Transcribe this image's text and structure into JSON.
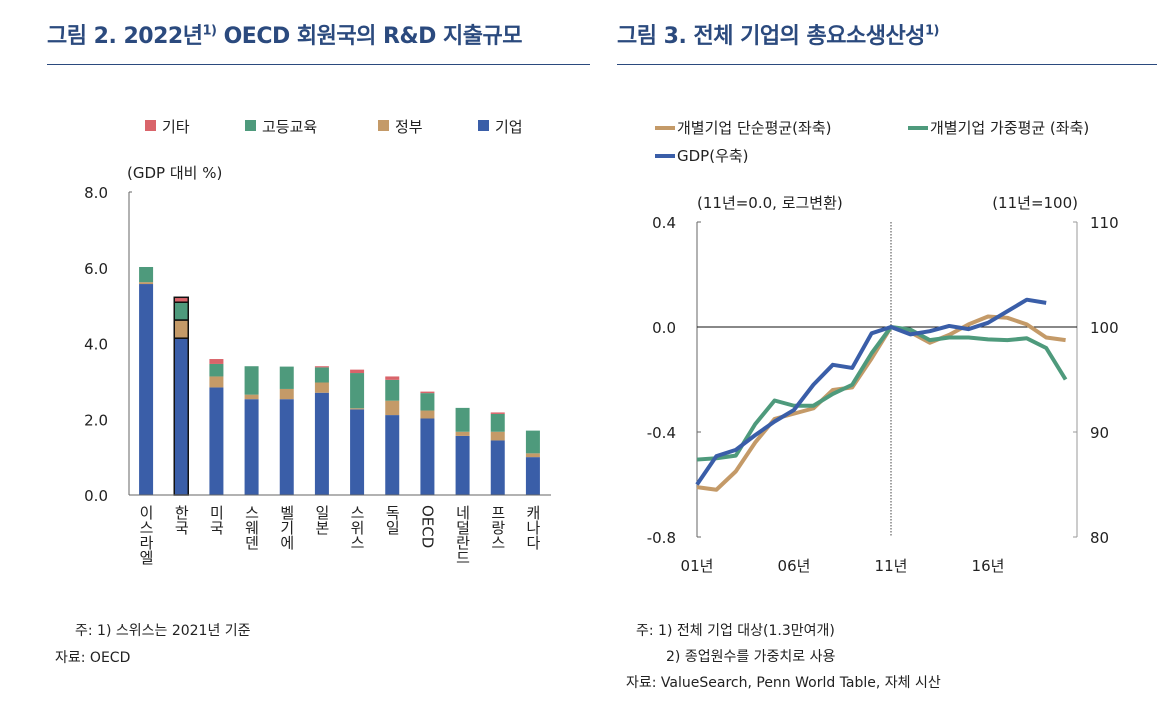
{
  "left": {
    "title": "그림 2. 2022년",
    "title_sup": "1)",
    "title_rest": " OECD 회원국의 R&D 지출규모",
    "notes": [
      "주: 1) 스위스는 2021년 기준",
      "자료: OECD"
    ]
  },
  "right": {
    "title": "그림 3. 전체 기업의 총요소생산성",
    "title_sup": "1)",
    "notes": [
      "주: 1) 전체 기업 대상(1.3만여개)",
      "2) 종업원수를 가중치로 사용",
      "자료: ValueSearch, Penn World Table, 자체 시산"
    ]
  },
  "chart_data": [
    {
      "type": "bar",
      "stacked": true,
      "ylabel": "(GDP 대비 %)",
      "ylim": [
        0,
        8
      ],
      "yticks": [
        "0.0",
        "2.0",
        "4.0",
        "6.0",
        "8.0"
      ],
      "legend_placement": "top",
      "categories": [
        "이스라엘",
        "한국",
        "미국",
        "스웨덴",
        "벨기에",
        "일본",
        "스위스",
        "독일",
        "OECD",
        "네덜란드",
        "프랑스",
        "캐나다"
      ],
      "highlight_category": "한국",
      "series": [
        {
          "name": "기업",
          "color": "#3a5ea8",
          "values": [
            5.57,
            4.14,
            2.84,
            2.53,
            2.53,
            2.7,
            2.26,
            2.11,
            2.02,
            1.56,
            1.44,
            1.0
          ]
        },
        {
          "name": "정부",
          "color": "#c49a68",
          "values": [
            0.05,
            0.48,
            0.29,
            0.12,
            0.27,
            0.27,
            0.03,
            0.38,
            0.21,
            0.11,
            0.23,
            0.1
          ]
        },
        {
          "name": "고등교육",
          "color": "#4e9a7c",
          "values": [
            0.4,
            0.47,
            0.33,
            0.75,
            0.59,
            0.4,
            0.93,
            0.55,
            0.46,
            0.63,
            0.47,
            0.6
          ]
        },
        {
          "name": "기타",
          "color": "#d9646a",
          "values": [
            0.0,
            0.13,
            0.13,
            0.0,
            0.0,
            0.03,
            0.09,
            0.09,
            0.04,
            0.0,
            0.04,
            0.0
          ]
        }
      ],
      "legend_order": [
        "기타",
        "고등교육",
        "정부",
        "기업"
      ]
    },
    {
      "type": "line",
      "ylabel_left": "(11년=0.0, 로그변환)",
      "ylabel_right": "(11년=100)",
      "ylim_left": [
        -0.8,
        0.4
      ],
      "ylim_right": [
        80,
        110
      ],
      "yticks_left": [
        "0.4",
        "0.0",
        "-0.4",
        "-0.8"
      ],
      "yticks_right": [
        "110",
        "100",
        "90",
        "80"
      ],
      "xticks": [
        "01년",
        "06년",
        "11년",
        "16년"
      ],
      "xtick_years": [
        2001,
        2006,
        2011,
        2016
      ],
      "xlim": [
        2001,
        2020.5
      ],
      "reference_line_year": 2011,
      "legend_placement": "top",
      "x": [
        2001,
        2002,
        2003,
        2004,
        2005,
        2006,
        2007,
        2008,
        2009,
        2010,
        2011,
        2012,
        2013,
        2014,
        2015,
        2016,
        2017,
        2018,
        2019,
        2020
      ],
      "series": [
        {
          "name": "개별기업 단순평균(좌축)",
          "axis": "left",
          "color": "#c49a68",
          "values": [
            -0.61,
            -0.62,
            -0.55,
            -0.44,
            -0.35,
            -0.33,
            -0.31,
            -0.24,
            -0.23,
            -0.12,
            0.0,
            -0.02,
            -0.06,
            -0.03,
            0.01,
            0.04,
            0.035,
            0.01,
            -0.04,
            -0.05
          ]
        },
        {
          "name": "개별기업 가중평균 (좌축)",
          "axis": "left",
          "color": "#4e9a7c",
          "values": [
            -0.505,
            -0.5,
            -0.49,
            -0.37,
            -0.28,
            -0.3,
            -0.3,
            -0.255,
            -0.22,
            -0.1,
            0.0,
            -0.01,
            -0.05,
            -0.04,
            -0.04,
            -0.047,
            -0.05,
            -0.043,
            -0.08,
            -0.2
          ]
        },
        {
          "name": "GDP(우축)",
          "axis": "right",
          "color": "#3a5ea8",
          "values": [
            85.0,
            87.7,
            88.3,
            89.7,
            91.0,
            92.1,
            94.5,
            96.4,
            96.1,
            99.4,
            100.0,
            99.3,
            99.6,
            100.1,
            99.8,
            100.4,
            101.5,
            102.6,
            102.3,
            null
          ]
        }
      ]
    }
  ]
}
